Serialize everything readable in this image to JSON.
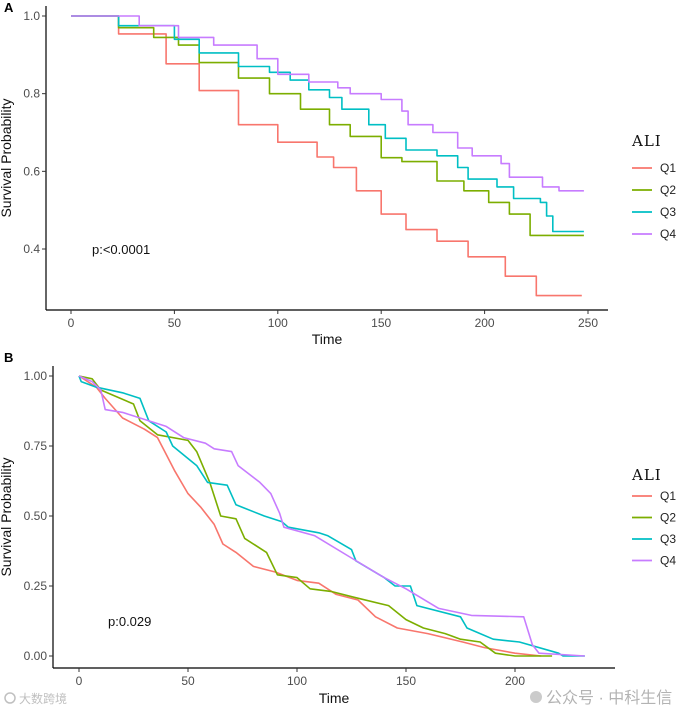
{
  "chart_data": [
    {
      "type": "line",
      "panel_label": "A",
      "curve": "step",
      "xlabel": "Time",
      "ylabel": "Survival Probability",
      "xlim": [
        0,
        250
      ],
      "ylim": [
        0.28,
        1.0
      ],
      "xticks": [
        0,
        50,
        100,
        150,
        200,
        250
      ],
      "xtick_labels": [
        "0",
        "50",
        "100",
        "150",
        "200",
        "250"
      ],
      "yticks": [
        0.4,
        0.6,
        0.8,
        1.0
      ],
      "ytick_labels": [
        "0.4",
        "0.6",
        "0.8",
        "1.0"
      ],
      "annotation": "p:<0.0001",
      "grid": false,
      "legend": {
        "title": "ALI",
        "placement": "right"
      },
      "series": [
        {
          "name": "Q1",
          "color": "#F8766D",
          "points": [
            [
              0,
              1
            ],
            [
              23,
              0.954
            ],
            [
              46,
              0.877
            ],
            [
              62,
              0.808
            ],
            [
              81,
              0.72
            ],
            [
              100,
              0.675
            ],
            [
              119,
              0.637
            ],
            [
              127,
              0.61
            ],
            [
              138,
              0.55
            ],
            [
              150,
              0.49
            ],
            [
              162,
              0.45
            ],
            [
              177,
              0.42
            ],
            [
              192,
              0.38
            ],
            [
              210,
              0.33
            ],
            [
              221,
              0.33
            ],
            [
              225,
              0.28
            ],
            [
              247,
              0.28
            ]
          ]
        },
        {
          "name": "Q2",
          "color": "#7CAE00",
          "points": [
            [
              0,
              1
            ],
            [
              23,
              0.97
            ],
            [
              40,
              0.945
            ],
            [
              52,
              0.925
            ],
            [
              62,
              0.88
            ],
            [
              81,
              0.84
            ],
            [
              96,
              0.8
            ],
            [
              111,
              0.76
            ],
            [
              125,
              0.72
            ],
            [
              135,
              0.69
            ],
            [
              150,
              0.635
            ],
            [
              160,
              0.625
            ],
            [
              177,
              0.575
            ],
            [
              190,
              0.55
            ],
            [
              202,
              0.52
            ],
            [
              212,
              0.49
            ],
            [
              222,
              0.435
            ],
            [
              248,
              0.435
            ]
          ]
        },
        {
          "name": "Q3",
          "color": "#00BFC4",
          "points": [
            [
              0,
              1
            ],
            [
              23,
              0.975
            ],
            [
              50,
              0.94
            ],
            [
              62,
              0.905
            ],
            [
              81,
              0.87
            ],
            [
              96,
              0.855
            ],
            [
              106,
              0.835
            ],
            [
              115,
              0.81
            ],
            [
              125,
              0.79
            ],
            [
              131,
              0.76
            ],
            [
              144,
              0.72
            ],
            [
              152,
              0.685
            ],
            [
              162,
              0.655
            ],
            [
              177,
              0.64
            ],
            [
              187,
              0.61
            ],
            [
              192,
              0.58
            ],
            [
              206,
              0.56
            ],
            [
              214,
              0.53
            ],
            [
              227,
              0.52
            ],
            [
              230,
              0.485
            ],
            [
              233,
              0.445
            ],
            [
              248,
              0.445
            ]
          ]
        },
        {
          "name": "Q4",
          "color": "#C77CFF",
          "points": [
            [
              0,
              1
            ],
            [
              33,
              0.975
            ],
            [
              52,
              0.945
            ],
            [
              69,
              0.925
            ],
            [
              90,
              0.89
            ],
            [
              100,
              0.85
            ],
            [
              115,
              0.83
            ],
            [
              129,
              0.815
            ],
            [
              135,
              0.8
            ],
            [
              150,
              0.785
            ],
            [
              160,
              0.755
            ],
            [
              163,
              0.72
            ],
            [
              175,
              0.7
            ],
            [
              187,
              0.66
            ],
            [
              194,
              0.64
            ],
            [
              208,
              0.62
            ],
            [
              212,
              0.585
            ],
            [
              228,
              0.56
            ],
            [
              236,
              0.55
            ],
            [
              248,
              0.55
            ]
          ]
        }
      ]
    },
    {
      "type": "line",
      "panel_label": "B",
      "curve": "linear",
      "xlabel": "Time",
      "ylabel": "Survival Probability",
      "xlim": [
        0,
        230
      ],
      "ylim": [
        0,
        1.0
      ],
      "xticks": [
        0,
        50,
        100,
        150,
        200
      ],
      "xtick_labels": [
        "0",
        "50",
        "100",
        "150",
        "200"
      ],
      "yticks": [
        0,
        0.25,
        0.5,
        0.75,
        1.0
      ],
      "ytick_labels": [
        "0.00",
        "0.25",
        "0.50",
        "0.75",
        "1.00"
      ],
      "annotation": "p:0.029",
      "grid": false,
      "legend": {
        "title": "ALI",
        "placement": "right"
      },
      "series": [
        {
          "name": "Q1",
          "color": "#F8766D",
          "points": [
            [
              0,
              1
            ],
            [
              8,
              0.96
            ],
            [
              12,
              0.92
            ],
            [
              20,
              0.85
            ],
            [
              30,
              0.81
            ],
            [
              36,
              0.78
            ],
            [
              40,
              0.72
            ],
            [
              44,
              0.66
            ],
            [
              50,
              0.58
            ],
            [
              56,
              0.53
            ],
            [
              62,
              0.47
            ],
            [
              66,
              0.4
            ],
            [
              72,
              0.37
            ],
            [
              80,
              0.32
            ],
            [
              90,
              0.3
            ],
            [
              100,
              0.27
            ],
            [
              110,
              0.26
            ],
            [
              118,
              0.22
            ],
            [
              128,
              0.2
            ],
            [
              136,
              0.14
            ],
            [
              146,
              0.1
            ],
            [
              160,
              0.08
            ],
            [
              176,
              0.05
            ],
            [
              186,
              0.03
            ],
            [
              200,
              0.01
            ],
            [
              212,
              0
            ]
          ]
        },
        {
          "name": "Q2",
          "color": "#7CAE00",
          "points": [
            [
              0,
              1
            ],
            [
              6,
              0.99
            ],
            [
              10,
              0.95
            ],
            [
              25,
              0.9
            ],
            [
              28,
              0.84
            ],
            [
              36,
              0.79
            ],
            [
              50,
              0.77
            ],
            [
              54,
              0.73
            ],
            [
              60,
              0.62
            ],
            [
              65,
              0.5
            ],
            [
              72,
              0.49
            ],
            [
              76,
              0.42
            ],
            [
              86,
              0.37
            ],
            [
              91,
              0.29
            ],
            [
              100,
              0.28
            ],
            [
              106,
              0.24
            ],
            [
              116,
              0.23
            ],
            [
              126,
              0.21
            ],
            [
              142,
              0.18
            ],
            [
              150,
              0.13
            ],
            [
              158,
              0.1
            ],
            [
              168,
              0.08
            ],
            [
              175,
              0.06
            ],
            [
              184,
              0.05
            ],
            [
              191,
              0.01
            ],
            [
              200,
              0
            ],
            [
              217,
              0
            ]
          ]
        },
        {
          "name": "Q3",
          "color": "#00BFC4",
          "points": [
            [
              0,
              1
            ],
            [
              1,
              0.98
            ],
            [
              8,
              0.96
            ],
            [
              20,
              0.94
            ],
            [
              28,
              0.92
            ],
            [
              32,
              0.84
            ],
            [
              40,
              0.8
            ],
            [
              43,
              0.75
            ],
            [
              54,
              0.68
            ],
            [
              59,
              0.62
            ],
            [
              68,
              0.61
            ],
            [
              72,
              0.54
            ],
            [
              85,
              0.5
            ],
            [
              93,
              0.48
            ],
            [
              96,
              0.46
            ],
            [
              110,
              0.44
            ],
            [
              114,
              0.43
            ],
            [
              125,
              0.38
            ],
            [
              127,
              0.34
            ],
            [
              140,
              0.28
            ],
            [
              145,
              0.25
            ],
            [
              152,
              0.25
            ],
            [
              155,
              0.18
            ],
            [
              175,
              0.14
            ],
            [
              178,
              0.1
            ],
            [
              190,
              0.06
            ],
            [
              202,
              0.05
            ],
            [
              220,
              0.01
            ],
            [
              222,
              0
            ],
            [
              232,
              0
            ]
          ]
        },
        {
          "name": "Q4",
          "color": "#C77CFF",
          "points": [
            [
              0,
              1
            ],
            [
              6,
              0.98
            ],
            [
              10,
              0.95
            ],
            [
              12,
              0.88
            ],
            [
              20,
              0.87
            ],
            [
              40,
              0.82
            ],
            [
              48,
              0.78
            ],
            [
              58,
              0.76
            ],
            [
              62,
              0.74
            ],
            [
              70,
              0.73
            ],
            [
              73,
              0.68
            ],
            [
              83,
              0.62
            ],
            [
              88,
              0.58
            ],
            [
              92,
              0.51
            ],
            [
              94,
              0.46
            ],
            [
              108,
              0.43
            ],
            [
              125,
              0.35
            ],
            [
              140,
              0.28
            ],
            [
              150,
              0.24
            ],
            [
              165,
              0.17
            ],
            [
              180,
              0.145
            ],
            [
              204,
              0.14
            ],
            [
              208,
              0.04
            ],
            [
              211,
              0.01
            ],
            [
              232,
              0
            ]
          ]
        }
      ]
    }
  ],
  "watermarks": {
    "right": "公众号 · 中科生信",
    "left": "大数跨境"
  }
}
